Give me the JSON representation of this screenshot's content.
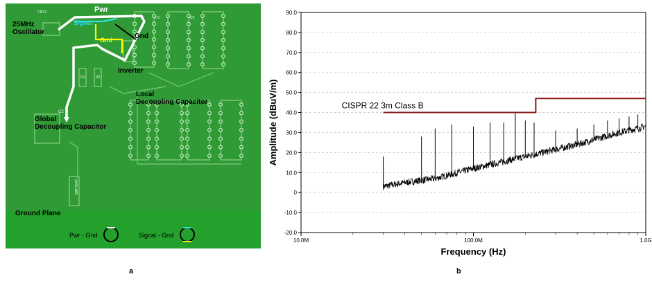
{
  "figure": {
    "panel_a_label": "a",
    "panel_b_label": "b"
  },
  "pcb": {
    "labels": {
      "oscillator": "25MHz\nOscillator",
      "pwr": "Pwr",
      "signal": "Signal",
      "gnd_yellow": "Gnd",
      "gnd_black": "Gnd",
      "inverter": "Inverter",
      "local_decoupling": "Local\nDecoupling Capacitor",
      "global_decoupling": "Global\nDecoupling Capacitor",
      "ground_plane": "Ground Plane",
      "legend_pwr_gnd": "Pwr - Gnd",
      "legend_signal_gnd": "Signal - Gnd",
      "silk_cry1": "CRY1",
      "silk_c2": "C2",
      "silk_r1": "R1",
      "silk_r2": "R2",
      "silk_u1": "U1",
      "silk_u2": "U2",
      "silk_battery": "BATTERY"
    },
    "colors": {
      "board": "#2f9a36",
      "pwr_trace": "#ffffff",
      "gnd_trace": "#ffff00",
      "signal_trace": "#33e0e0",
      "copper": "#7fc97f"
    }
  },
  "chart_data": {
    "type": "line",
    "xscale": "log",
    "xlabel": "Frequency (Hz)",
    "ylabel": "Amplitude (dBuV/m)",
    "xlim": [
      10000000,
      1000000000
    ],
    "ylim": [
      -20,
      90
    ],
    "x_ticks": [
      {
        "value": 10000000,
        "label": "10.0M"
      },
      {
        "value": 100000000,
        "label": "100.0M"
      },
      {
        "value": 1000000000,
        "label": "1.0G"
      }
    ],
    "y_ticks": [
      "-20.0",
      "-10.0",
      "0",
      "10.0",
      "20.0",
      "30.0",
      "40.0",
      "50.0",
      "60.0",
      "70.0",
      "80.0",
      "90.0"
    ],
    "limit_line": {
      "name": "CISPR 22 3m Class B",
      "color": "#8b1a1a",
      "points": [
        [
          30000000,
          40
        ],
        [
          230000000,
          40
        ],
        [
          230000000,
          47
        ],
        [
          1000000000,
          47
        ]
      ]
    },
    "noise_floor": [
      [
        30000000,
        3
      ],
      [
        40000000,
        5
      ],
      [
        60000000,
        7
      ],
      [
        100000000,
        12
      ],
      [
        200000000,
        18
      ],
      [
        400000000,
        24
      ],
      [
        700000000,
        30
      ],
      [
        1000000000,
        33
      ]
    ],
    "spikes": [
      {
        "x": 30000000,
        "y": 18
      },
      {
        "x": 50000000,
        "y": 28
      },
      {
        "x": 60000000,
        "y": 32
      },
      {
        "x": 75000000,
        "y": 34
      },
      {
        "x": 100000000,
        "y": 33
      },
      {
        "x": 125000000,
        "y": 35
      },
      {
        "x": 150000000,
        "y": 35
      },
      {
        "x": 175000000,
        "y": 40
      },
      {
        "x": 200000000,
        "y": 36
      },
      {
        "x": 225000000,
        "y": 35
      },
      {
        "x": 300000000,
        "y": 31
      },
      {
        "x": 400000000,
        "y": 32
      },
      {
        "x": 500000000,
        "y": 34
      },
      {
        "x": 600000000,
        "y": 36
      },
      {
        "x": 700000000,
        "y": 37
      },
      {
        "x": 800000000,
        "y": 38
      },
      {
        "x": 900000000,
        "y": 39
      }
    ],
    "line_color": "#000000",
    "grid": true
  }
}
